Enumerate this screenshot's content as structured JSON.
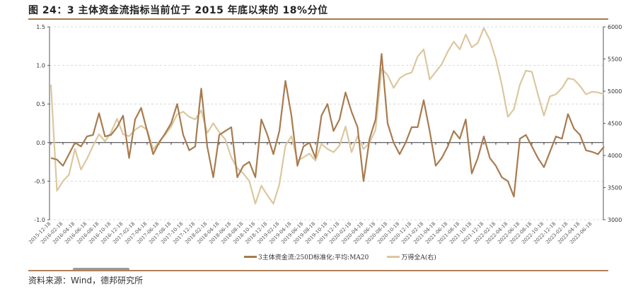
{
  "title": "图 24：3 主体资金流指标当前位于 2015 年底以来的 18%分位",
  "source": "资料来源：Wind，德邦研究所",
  "chart_data": {
    "type": "line",
    "title": "",
    "grid": "horizontal dashed",
    "legend_position": "bottom",
    "y_left": {
      "range": [
        -1.0,
        1.5
      ],
      "ticks": [
        "-1.0",
        "-0.5",
        "0.0",
        "0.5",
        "1.0",
        "1.5"
      ]
    },
    "y_right": {
      "range": [
        3000,
        6000
      ],
      "ticks": [
        "3000",
        "3500",
        "4000",
        "4500",
        "5000",
        "5500",
        "6000"
      ]
    },
    "x_tick_labels": [
      "2015-12-18",
      "2016-02-18",
      "2016-04-18",
      "2016-06-18",
      "2016-08-18",
      "2016-10-18",
      "2016-12-18",
      "2017-02-18",
      "2017-04-18",
      "2017-06-18",
      "2017-08-18",
      "2017-10-18",
      "2017-12-18",
      "2018-02-18",
      "2018-04-18",
      "2018-06-18",
      "2018-08-18",
      "2018-10-18",
      "2018-12-18",
      "2019-02-18",
      "2019-04-18",
      "2019-06-18",
      "2019-08-18",
      "2019-10-18",
      "2019-12-18",
      "2020-02-18",
      "2020-04-18",
      "2020-06-18",
      "2020-08-18",
      "2020-10-18",
      "2020-12-18",
      "2021-02-18",
      "2021-04-18",
      "2021-06-18",
      "2021-08-18",
      "2021-10-18",
      "2021-12-18",
      "2022-02-18",
      "2022-04-18",
      "2022-06-18",
      "2022-08-18",
      "2022-10-18",
      "2022-12-18",
      "2023-02-18",
      "2023-04-18",
      "2023-06-18"
    ],
    "x_start": "2015-12",
    "x_step": "1 month",
    "series": [
      {
        "name": "3主体资金流:250D标准化:平均:MA20",
        "axis": "left",
        "color": "#a87b4f",
        "values": [
          -0.2,
          -0.22,
          -0.3,
          -0.15,
          0.0,
          -0.05,
          0.08,
          0.1,
          0.38,
          0.08,
          0.1,
          0.2,
          0.35,
          -0.2,
          0.3,
          0.45,
          0.15,
          -0.15,
          0.0,
          0.12,
          0.25,
          0.5,
          0.1,
          -0.1,
          -0.05,
          0.7,
          -0.05,
          -0.45,
          0.1,
          0.15,
          0.2,
          -0.45,
          -0.3,
          -0.25,
          -0.45,
          0.3,
          0.1,
          -0.15,
          0.15,
          0.8,
          0.35,
          -0.3,
          -0.05,
          0.0,
          -0.2,
          0.35,
          0.5,
          0.15,
          0.3,
          0.65,
          0.4,
          0.2,
          -0.5,
          0.05,
          0.3,
          1.15,
          0.25,
          0.0,
          -0.15,
          0.0,
          0.2,
          0.2,
          0.55,
          0.15,
          -0.3,
          -0.2,
          -0.05,
          0.15,
          0.05,
          0.3,
          -0.4,
          -0.2,
          0.08,
          -0.2,
          -0.3,
          -0.45,
          -0.5,
          -0.7,
          0.05,
          0.1,
          -0.05,
          -0.2,
          -0.32,
          -0.12,
          0.08,
          0.05,
          0.37,
          0.18,
          0.1,
          -0.1,
          -0.12,
          -0.15,
          -0.05
        ]
      },
      {
        "name": "万得全A(右)",
        "axis": "right",
        "color": "#dcc79e",
        "values": [
          5100,
          3450,
          3600,
          3700,
          4100,
          3780,
          3950,
          4150,
          4330,
          4220,
          4360,
          4570,
          4330,
          4300,
          4400,
          4460,
          4400,
          4090,
          4220,
          4320,
          4450,
          4640,
          4680,
          4600,
          4560,
          4700,
          4350,
          4500,
          4360,
          4250,
          3970,
          3800,
          3720,
          3600,
          3250,
          3530,
          3380,
          3250,
          3550,
          4150,
          4300,
          3920,
          3970,
          4030,
          3920,
          4180,
          4100,
          4050,
          4150,
          4450,
          4050,
          4300,
          4100,
          4200,
          4400,
          5350,
          5250,
          5050,
          5200,
          5260,
          5290,
          5540,
          5650,
          5180,
          5300,
          5420,
          5615,
          5770,
          5650,
          5880,
          5680,
          5750,
          5980,
          5800,
          5500,
          5100,
          4600,
          4720,
          5100,
          5320,
          5300,
          4950,
          4620,
          4920,
          4950,
          5050,
          5200,
          5180,
          5080,
          4950,
          4990,
          4980,
          4950
        ]
      }
    ]
  }
}
